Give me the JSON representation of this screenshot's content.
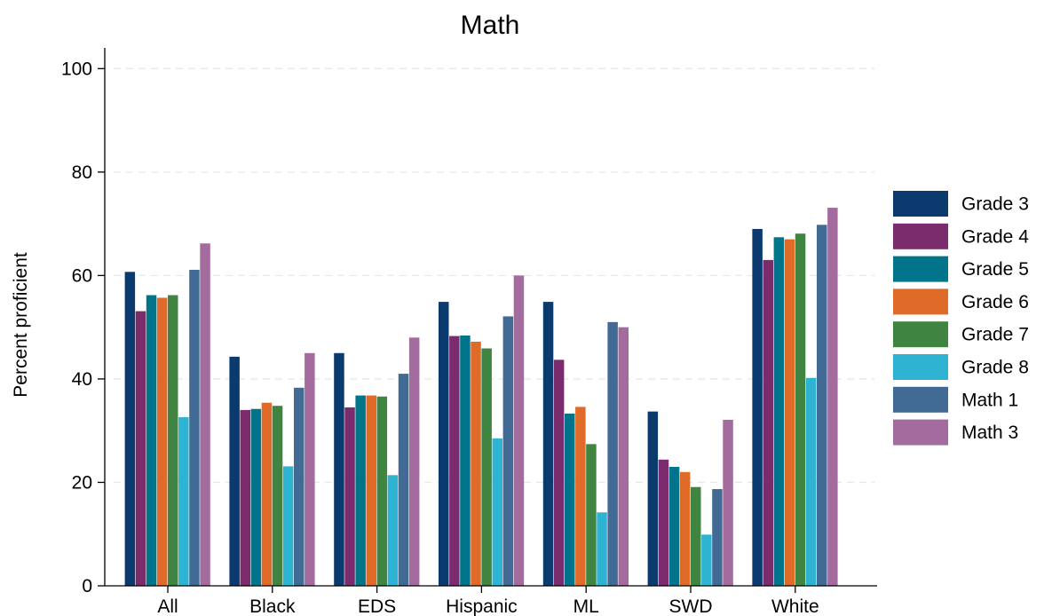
{
  "chart_data": {
    "type": "bar",
    "title": "Math",
    "xlabel": "",
    "ylabel": "Percent proficient",
    "ylim": [
      0,
      104
    ],
    "yticks": [
      0,
      20,
      40,
      60,
      80,
      100
    ],
    "grid": true,
    "legend_position": "right",
    "categories": [
      "All",
      "Black",
      "EDS",
      "Hispanic",
      "ML",
      "SWD",
      "White"
    ],
    "series": [
      {
        "name": "Grade 3",
        "color": "#0b3a6e",
        "values": [
          60.7,
          44.3,
          45.0,
          54.9,
          54.9,
          33.7,
          69.0
        ]
      },
      {
        "name": "Grade 4",
        "color": "#7b2c6d",
        "values": [
          53.1,
          34.0,
          34.5,
          48.3,
          43.7,
          24.4,
          63.0
        ]
      },
      {
        "name": "Grade 5",
        "color": "#00748a",
        "values": [
          56.2,
          34.2,
          36.8,
          48.4,
          33.3,
          23.0,
          67.4
        ]
      },
      {
        "name": "Grade 6",
        "color": "#e06a27",
        "values": [
          55.7,
          35.4,
          36.8,
          47.2,
          34.6,
          22.0,
          67.0
        ]
      },
      {
        "name": "Grade 7",
        "color": "#3f8541",
        "values": [
          56.2,
          34.8,
          36.6,
          45.9,
          27.4,
          19.1,
          68.1
        ]
      },
      {
        "name": "Grade 8",
        "color": "#2fb3d3",
        "values": [
          32.6,
          23.1,
          21.4,
          28.5,
          14.2,
          9.9,
          40.2
        ]
      },
      {
        "name": "Math 1",
        "color": "#416b95",
        "values": [
          61.1,
          38.3,
          41.0,
          52.1,
          51.0,
          18.7,
          69.8
        ]
      },
      {
        "name": "Math 3",
        "color": "#a46b9e",
        "values": [
          66.2,
          45.0,
          48.0,
          60.0,
          50.0,
          32.1,
          73.1
        ]
      }
    ]
  }
}
